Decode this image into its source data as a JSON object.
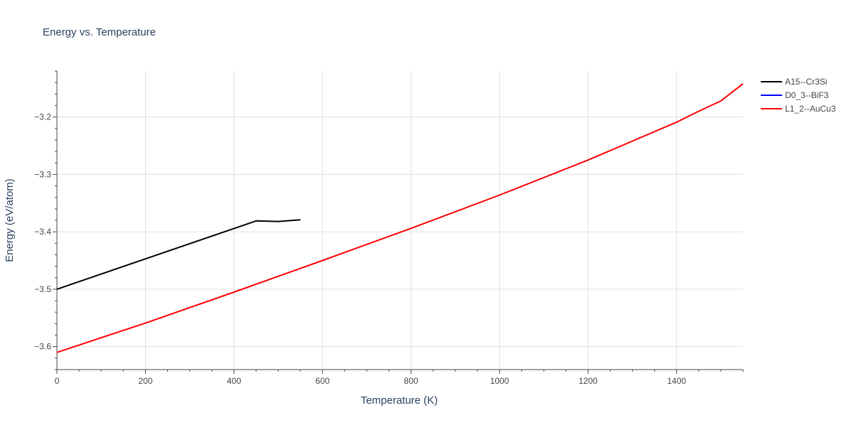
{
  "chart_data": {
    "type": "line",
    "title": "Energy vs. Temperature",
    "xlabel": "Temperature (K)",
    "ylabel": "Energy (eV/atom)",
    "xlim": [
      0,
      1550
    ],
    "ylim": [
      -3.64,
      -3.12
    ],
    "x_ticks": [
      0,
      200,
      400,
      600,
      800,
      1000,
      1200,
      1400
    ],
    "x_tick_labels": [
      "0",
      "200",
      "400",
      "600",
      "800",
      "1000",
      "1200",
      "1400"
    ],
    "x_minor_step": 50,
    "y_ticks": [
      -3.6,
      -3.5,
      -3.4,
      -3.3,
      -3.2
    ],
    "y_tick_labels": [
      "−3.6",
      "−3.5",
      "−3.4",
      "−3.3",
      "−3.2"
    ],
    "y_minor_step": 0.02,
    "grid": true,
    "legend_position": "top-right-outside",
    "series": [
      {
        "name": "A15--Cr3Si",
        "color": "#000000",
        "x": [
          0,
          450,
          500,
          550
        ],
        "y": [
          -3.5,
          -3.381,
          -3.382,
          -3.379
        ]
      },
      {
        "name": "D0_3--BiF3",
        "color": "#0000ff",
        "x": [],
        "y": []
      },
      {
        "name": "L1_2--AuCu3",
        "color": "#ff0000",
        "x": [
          0,
          200,
          400,
          600,
          800,
          1000,
          1200,
          1400,
          1450,
          1500,
          1550
        ],
        "y": [
          -3.61,
          -3.559,
          -3.505,
          -3.45,
          -3.394,
          -3.336,
          -3.275,
          -3.209,
          -3.19,
          -3.172,
          -3.142
        ]
      }
    ]
  }
}
